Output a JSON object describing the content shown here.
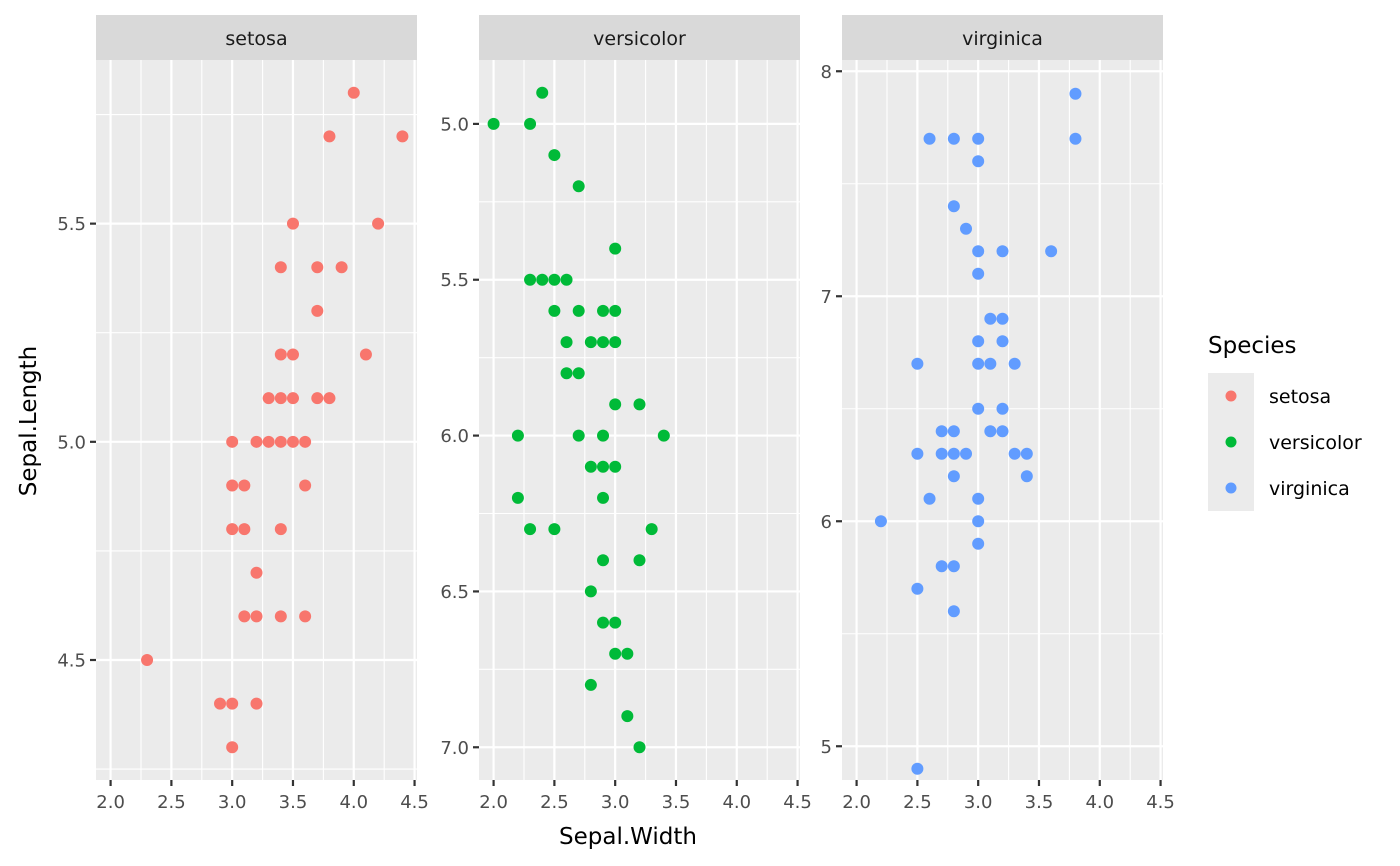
{
  "chart_data": {
    "type": "scatter",
    "title": "",
    "xlabel": "Sepal.Width",
    "ylabel": "Sepal.Length",
    "grid": true,
    "facet_by": "Species",
    "legend": {
      "title": "Species",
      "position": "right",
      "entries": [
        {
          "label": "setosa",
          "color": "#F8766D"
        },
        {
          "label": "versicolor",
          "color": "#00BA38"
        },
        {
          "label": "virginica",
          "color": "#619CFF"
        }
      ]
    },
    "panels": [
      {
        "name": "setosa",
        "color": "#F8766D",
        "xlim": [
          1.88,
          4.52
        ],
        "x_ticks": [
          2.0,
          2.5,
          3.0,
          3.5,
          4.0,
          4.5
        ],
        "x_tick_labels": [
          "2.0",
          "2.5",
          "3.0",
          "3.5",
          "4.0",
          "4.5"
        ],
        "ylim": [
          4.225,
          5.875
        ],
        "y_reversed": false,
        "y_ticks": [
          4.5,
          5.0,
          5.5
        ],
        "y_tick_labels": [
          "4.5",
          "5.0",
          "5.5"
        ],
        "y_minor": [
          4.25,
          4.75,
          5.25,
          5.75
        ],
        "points": [
          [
            4.0,
            5.8
          ],
          [
            3.8,
            5.7
          ],
          [
            4.4,
            5.7
          ],
          [
            3.5,
            5.5
          ],
          [
            4.2,
            5.5
          ],
          [
            3.4,
            5.4
          ],
          [
            3.7,
            5.4
          ],
          [
            3.9,
            5.4
          ],
          [
            3.7,
            5.3
          ],
          [
            3.4,
            5.2
          ],
          [
            3.5,
            5.2
          ],
          [
            4.1,
            5.2
          ],
          [
            3.3,
            5.1
          ],
          [
            3.4,
            5.1
          ],
          [
            3.5,
            5.1
          ],
          [
            3.7,
            5.1
          ],
          [
            3.8,
            5.1
          ],
          [
            3.0,
            5.0
          ],
          [
            3.2,
            5.0
          ],
          [
            3.3,
            5.0
          ],
          [
            3.4,
            5.0
          ],
          [
            3.5,
            5.0
          ],
          [
            3.6,
            5.0
          ],
          [
            3.0,
            4.9
          ],
          [
            3.1,
            4.9
          ],
          [
            3.6,
            4.9
          ],
          [
            3.0,
            4.8
          ],
          [
            3.1,
            4.8
          ],
          [
            3.4,
            4.8
          ],
          [
            3.2,
            4.7
          ],
          [
            3.1,
            4.6
          ],
          [
            3.2,
            4.6
          ],
          [
            3.4,
            4.6
          ],
          [
            3.6,
            4.6
          ],
          [
            2.3,
            4.5
          ],
          [
            2.9,
            4.4
          ],
          [
            3.0,
            4.4
          ],
          [
            3.2,
            4.4
          ],
          [
            3.0,
            4.3
          ]
        ]
      },
      {
        "name": "versicolor",
        "color": "#00BA38",
        "xlim": [
          1.88,
          4.52
        ],
        "x_ticks": [
          2.0,
          2.5,
          3.0,
          3.5,
          4.0,
          4.5
        ],
        "x_tick_labels": [
          "2.0",
          "2.5",
          "3.0",
          "3.5",
          "4.0",
          "4.5"
        ],
        "ylim": [
          4.795,
          7.105
        ],
        "y_reversed": true,
        "y_ticks": [
          5.0,
          5.5,
          6.0,
          6.5,
          7.0
        ],
        "y_tick_labels": [
          "5.0",
          "5.5",
          "6.0",
          "6.5",
          "7.0"
        ],
        "y_minor": [
          4.75,
          5.25,
          5.75,
          6.25,
          6.75
        ],
        "points": [
          [
            2.4,
            4.9
          ],
          [
            2.0,
            5.0
          ],
          [
            2.3,
            5.0
          ],
          [
            2.5,
            5.1
          ],
          [
            2.7,
            5.2
          ],
          [
            3.0,
            5.4
          ],
          [
            2.3,
            5.5
          ],
          [
            2.4,
            5.5
          ],
          [
            2.5,
            5.5
          ],
          [
            2.6,
            5.5
          ],
          [
            2.5,
            5.6
          ],
          [
            2.7,
            5.6
          ],
          [
            2.9,
            5.6
          ],
          [
            3.0,
            5.6
          ],
          [
            2.6,
            5.7
          ],
          [
            2.8,
            5.7
          ],
          [
            2.9,
            5.7
          ],
          [
            3.0,
            5.7
          ],
          [
            2.6,
            5.8
          ],
          [
            2.7,
            5.8
          ],
          [
            3.0,
            5.9
          ],
          [
            3.2,
            5.9
          ],
          [
            2.2,
            6.0
          ],
          [
            2.7,
            6.0
          ],
          [
            2.9,
            6.0
          ],
          [
            3.4,
            6.0
          ],
          [
            2.8,
            6.1
          ],
          [
            2.9,
            6.1
          ],
          [
            3.0,
            6.1
          ],
          [
            2.2,
            6.2
          ],
          [
            2.9,
            6.2
          ],
          [
            2.3,
            6.3
          ],
          [
            2.5,
            6.3
          ],
          [
            3.3,
            6.3
          ],
          [
            2.9,
            6.4
          ],
          [
            3.2,
            6.4
          ],
          [
            2.8,
            6.5
          ],
          [
            2.9,
            6.6
          ],
          [
            3.0,
            6.6
          ],
          [
            3.0,
            6.7
          ],
          [
            3.1,
            6.7
          ],
          [
            2.8,
            6.8
          ],
          [
            3.1,
            6.9
          ],
          [
            3.2,
            7.0
          ]
        ]
      },
      {
        "name": "virginica",
        "color": "#619CFF",
        "xlim": [
          1.88,
          4.52
        ],
        "x_ticks": [
          2.0,
          2.5,
          3.0,
          3.5,
          4.0,
          4.5
        ],
        "x_tick_labels": [
          "2.0",
          "2.5",
          "3.0",
          "3.5",
          "4.0",
          "4.5"
        ],
        "ylim": [
          4.85,
          8.05
        ],
        "y_reversed": false,
        "y_ticks": [
          5,
          6,
          7,
          8
        ],
        "y_tick_labels": [
          "5",
          "6",
          "7",
          "8"
        ],
        "y_minor": [
          5.5,
          6.5,
          7.5
        ],
        "points": [
          [
            3.8,
            7.9
          ],
          [
            2.6,
            7.7
          ],
          [
            2.8,
            7.7
          ],
          [
            3.0,
            7.7
          ],
          [
            3.8,
            7.7
          ],
          [
            3.0,
            7.6
          ],
          [
            2.8,
            7.4
          ],
          [
            2.9,
            7.3
          ],
          [
            3.0,
            7.2
          ],
          [
            3.2,
            7.2
          ],
          [
            3.6,
            7.2
          ],
          [
            3.0,
            7.1
          ],
          [
            3.1,
            6.9
          ],
          [
            3.2,
            6.9
          ],
          [
            3.0,
            6.8
          ],
          [
            3.2,
            6.8
          ],
          [
            2.5,
            6.7
          ],
          [
            3.0,
            6.7
          ],
          [
            3.1,
            6.7
          ],
          [
            3.3,
            6.7
          ],
          [
            3.0,
            6.5
          ],
          [
            3.2,
            6.5
          ],
          [
            2.7,
            6.4
          ],
          [
            2.8,
            6.4
          ],
          [
            3.1,
            6.4
          ],
          [
            3.2,
            6.4
          ],
          [
            2.5,
            6.3
          ],
          [
            2.7,
            6.3
          ],
          [
            2.8,
            6.3
          ],
          [
            2.9,
            6.3
          ],
          [
            3.3,
            6.3
          ],
          [
            3.4,
            6.3
          ],
          [
            2.8,
            6.2
          ],
          [
            3.4,
            6.2
          ],
          [
            2.6,
            6.1
          ],
          [
            3.0,
            6.1
          ],
          [
            2.2,
            6.0
          ],
          [
            3.0,
            6.0
          ],
          [
            3.0,
            5.9
          ],
          [
            2.7,
            5.8
          ],
          [
            2.8,
            5.8
          ],
          [
            2.5,
            5.7
          ],
          [
            2.8,
            5.6
          ],
          [
            2.5,
            4.9
          ]
        ]
      }
    ]
  }
}
